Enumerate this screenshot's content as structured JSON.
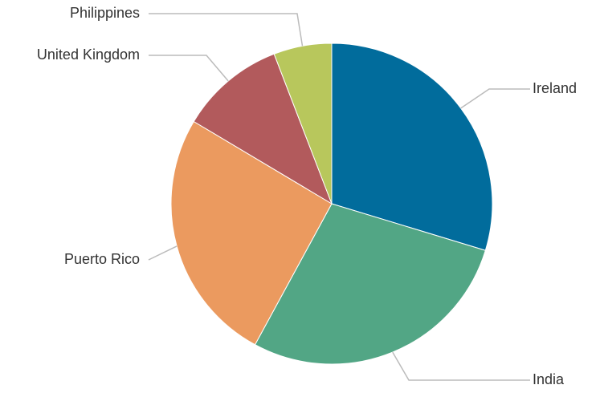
{
  "chart_data": {
    "type": "pie",
    "title": "",
    "categories": [
      "Ireland",
      "India",
      "Puerto Rico",
      "United Kingdom",
      "Philippines"
    ],
    "values": [
      30.0,
      28.5,
      25.9,
      10.7,
      5.9
    ],
    "colors": [
      "#016c9c",
      "#52a685",
      "#eb9a5f",
      "#b25a5c",
      "#b8c75c"
    ],
    "start_angle_deg": 0,
    "direction": "clockwise",
    "legend": "none (labels with leader lines)"
  }
}
